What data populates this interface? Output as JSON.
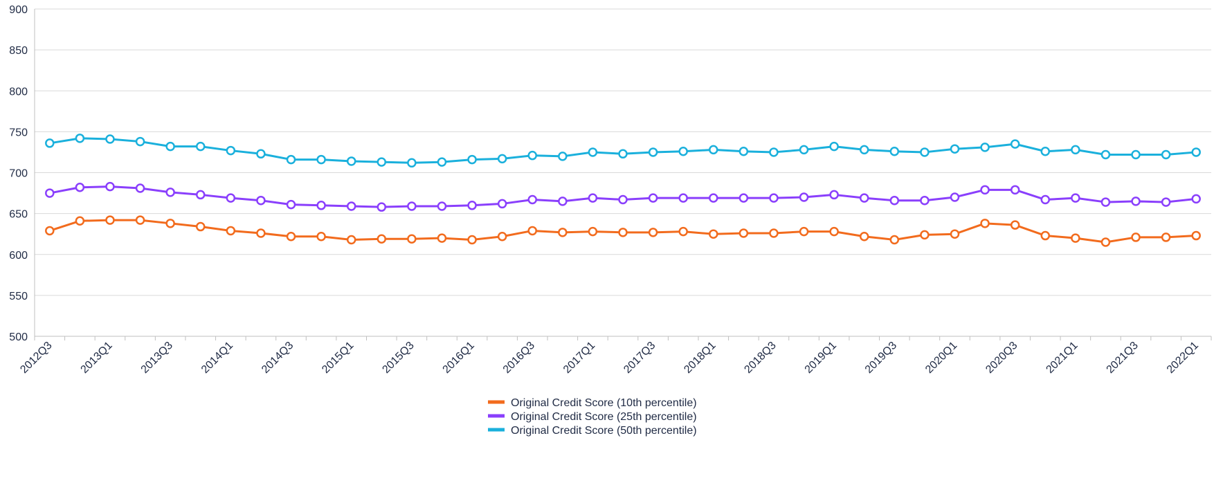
{
  "chart_data": {
    "type": "line",
    "title": "",
    "xlabel": "",
    "ylabel": "",
    "ylim": [
      500,
      900
    ],
    "yticks": [
      500,
      550,
      600,
      650,
      700,
      750,
      800,
      850,
      900
    ],
    "grid": "horizontal",
    "legend_position": "bottom-center",
    "x": [
      "2012Q3",
      "2012Q4",
      "2013Q1",
      "2013Q2",
      "2013Q3",
      "2013Q4",
      "2014Q1",
      "2014Q2",
      "2014Q3",
      "2014Q4",
      "2015Q1",
      "2015Q2",
      "2015Q3",
      "2015Q4",
      "2016Q1",
      "2016Q2",
      "2016Q3",
      "2016Q4",
      "2017Q1",
      "2017Q2",
      "2017Q3",
      "2017Q4",
      "2018Q1",
      "2018Q2",
      "2018Q3",
      "2018Q4",
      "2019Q1",
      "2019Q2",
      "2019Q3",
      "2019Q4",
      "2020Q1",
      "2020Q2",
      "2020Q3",
      "2020Q4",
      "2021Q1",
      "2021Q2",
      "2021Q3",
      "2021Q4",
      "2022Q1"
    ],
    "x_tick_labels": [
      "2012Q3",
      "2013Q1",
      "2013Q3",
      "2014Q1",
      "2014Q3",
      "2015Q1",
      "2015Q3",
      "2016Q1",
      "2016Q3",
      "2017Q1",
      "2017Q3",
      "2018Q1",
      "2018Q3",
      "2019Q1",
      "2019Q3",
      "2020Q1",
      "2020Q3",
      "2021Q1",
      "2021Q3",
      "2022Q1"
    ],
    "series": [
      {
        "name": "Original Credit Score (10th percentile)",
        "color": "#f26b1d",
        "values": [
          629,
          641,
          642,
          642,
          638,
          634,
          629,
          626,
          622,
          622,
          618,
          619,
          619,
          620,
          618,
          622,
          629,
          627,
          628,
          627,
          627,
          628,
          625,
          626,
          626,
          628,
          628,
          622,
          618,
          624,
          625,
          638,
          636,
          623,
          620,
          615,
          621,
          621,
          623
        ]
      },
      {
        "name": "Original Credit Score (25th percentile)",
        "color": "#8a3ffc",
        "values": [
          675,
          682,
          683,
          681,
          676,
          673,
          669,
          666,
          661,
          660,
          659,
          658,
          659,
          659,
          660,
          662,
          667,
          665,
          669,
          667,
          669,
          669,
          669,
          669,
          669,
          670,
          673,
          669,
          666,
          666,
          670,
          679,
          679,
          667,
          669,
          664,
          665,
          664,
          668
        ]
      },
      {
        "name": "Original Credit Score (50th percentile)",
        "color": "#1ab0dc",
        "values": [
          736,
          742,
          741,
          738,
          732,
          732,
          727,
          723,
          716,
          716,
          714,
          713,
          712,
          713,
          716,
          717,
          721,
          720,
          725,
          723,
          725,
          726,
          728,
          726,
          725,
          728,
          732,
          728,
          726,
          725,
          729,
          731,
          735,
          726,
          728,
          722,
          722,
          722,
          725
        ]
      }
    ]
  }
}
